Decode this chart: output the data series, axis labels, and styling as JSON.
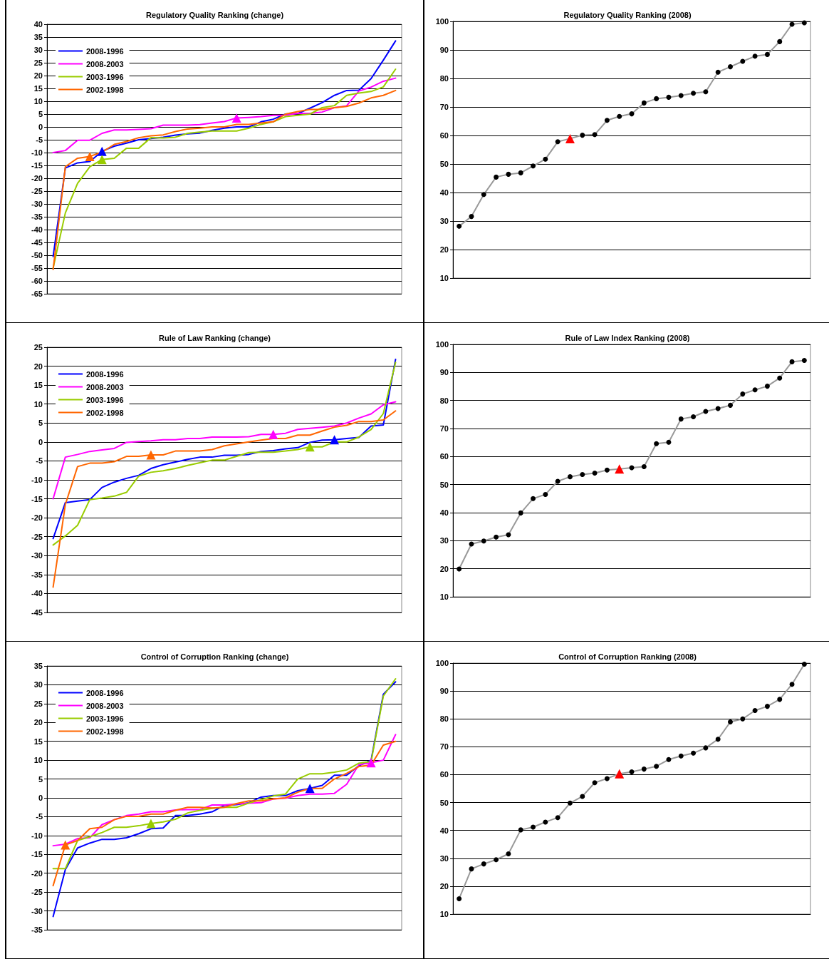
{
  "chart_data": [
    {
      "type": "line",
      "title": "Regulatory Quality Ranking (change)",
      "categories": [
        null,
        null,
        null,
        null,
        null,
        null,
        null,
        null,
        null,
        null,
        null,
        null,
        null,
        null,
        null,
        null,
        null,
        null,
        null,
        null,
        null,
        null,
        null,
        null,
        null,
        null,
        null,
        null,
        null
      ],
      "ylim": [
        -65,
        40
      ],
      "yticks": [
        -65,
        -60,
        -55,
        -50,
        -45,
        -40,
        -35,
        -30,
        -25,
        -20,
        -15,
        -10,
        -5,
        0,
        5,
        10,
        15,
        20,
        25,
        30,
        35,
        40
      ],
      "grid": "y",
      "legend": "top left",
      "tick_labels": "y",
      "marker": "none",
      "line_style": "solid",
      "series": [
        {
          "name": "2008-1996",
          "color": "#0000ff",
          "values": [
            -50.5,
            -16,
            -14,
            -13.5,
            -9.5,
            -7.5,
            -6.3,
            -5,
            -4.5,
            -4,
            -3.2,
            -2.7,
            -2.4,
            -1.3,
            -0.5,
            0,
            0,
            2,
            3,
            5,
            5.2,
            7.3,
            9.5,
            12.3,
            14.2,
            14.3,
            18.8,
            26,
            33.5
          ]
        },
        {
          "name": "2008-2003",
          "color": "#ff00ff",
          "values": [
            -10,
            -9.2,
            -5.2,
            -5.2,
            -2.5,
            -1.2,
            -1.2,
            -1,
            -0.7,
            0.7,
            0.7,
            0.7,
            0.9,
            1.5,
            2.1,
            3.5,
            3.7,
            4,
            4.5,
            4.6,
            5.3,
            5.3,
            5.8,
            7.5,
            8.2,
            14,
            15.5,
            17.8,
            19
          ]
        },
        {
          "name": "2003-1996",
          "color": "#99cc00",
          "values": [
            -55,
            -33.5,
            -22,
            -15.5,
            -12.7,
            -12.2,
            -8.3,
            -8.3,
            -4.2,
            -4.3,
            -4,
            -2.5,
            -2,
            -1.6,
            -1.6,
            -1.6,
            -0.5,
            1,
            2,
            4,
            4.5,
            5,
            7.5,
            8.3,
            12.3,
            13.2,
            13.8,
            15.6,
            22.5
          ]
        },
        {
          "name": "2002-1998",
          "color": "#ff6600",
          "values": [
            -55.5,
            -15.5,
            -12.2,
            -11.5,
            -9.8,
            -6.8,
            -5.7,
            -4.2,
            -3.5,
            -3.1,
            -1.8,
            -0.8,
            -0.5,
            0,
            0,
            1,
            1,
            1.5,
            2,
            5,
            6,
            6.8,
            6.8,
            7.5,
            8,
            9.3,
            11.3,
            12.3,
            14.2
          ]
        },
        {
          "type": "scatter",
          "marker": "triangle",
          "color": "#0000ff",
          "values": [
            null,
            null,
            null,
            null,
            -9.5,
            null,
            null,
            null,
            null,
            null,
            null,
            null,
            null,
            null,
            null,
            null,
            null,
            null,
            null,
            null,
            null,
            null,
            null,
            null,
            null,
            null,
            null,
            null,
            null
          ]
        },
        {
          "type": "scatter",
          "marker": "triangle",
          "color": "#ff00ff",
          "values": [
            null,
            null,
            null,
            null,
            null,
            null,
            null,
            null,
            null,
            null,
            null,
            null,
            null,
            null,
            null,
            3.5,
            null,
            null,
            null,
            null,
            null,
            null,
            null,
            null,
            null,
            null,
            null,
            null,
            null
          ]
        },
        {
          "type": "scatter",
          "marker": "triangle",
          "color": "#99cc00",
          "values": [
            null,
            null,
            null,
            null,
            -12.7,
            null,
            null,
            null,
            null,
            null,
            null,
            null,
            null,
            null,
            null,
            null,
            null,
            null,
            null,
            null,
            null,
            null,
            null,
            null,
            null,
            null,
            null,
            null,
            null
          ]
        },
        {
          "type": "scatter",
          "marker": "triangle",
          "color": "#ff6600",
          "values": [
            null,
            null,
            null,
            -11.5,
            null,
            null,
            null,
            null,
            null,
            null,
            null,
            null,
            null,
            null,
            null,
            null,
            null,
            null,
            null,
            null,
            null,
            null,
            null,
            null,
            null,
            null,
            null,
            null,
            null
          ]
        }
      ]
    },
    {
      "type": "line",
      "title": "Regulatory Quality Ranking (2008)",
      "categories": [
        null,
        null,
        null,
        null,
        null,
        null,
        null,
        null,
        null,
        null,
        null,
        null,
        null,
        null,
        null,
        null,
        null,
        null,
        null,
        null,
        null,
        null,
        null,
        null,
        null,
        null,
        null,
        null,
        null
      ],
      "ylim": [
        10,
        100
      ],
      "yticks": [
        10,
        20,
        30,
        40,
        50,
        60,
        70,
        80,
        90,
        100
      ],
      "grid": "y",
      "legend": false,
      "tick_labels": "y",
      "marker": "none",
      "line_style": "solid",
      "series": [
        {
          "color": "#999999",
          "values": [
            28.2,
            31.6,
            39.3,
            45.4,
            46.4,
            46.9,
            49.3,
            51.7,
            57.8,
            58.9,
            60.1,
            60.3,
            65.3,
            66.7,
            67.6,
            71.4,
            72.9,
            73.4,
            74,
            74.8,
            75.3,
            82.2,
            84.1,
            86,
            87.8,
            88.4,
            92.9,
            99,
            99.5
          ]
        },
        {
          "type": "scatter",
          "marker": "circle",
          "color": "#000000",
          "values": [
            28.2,
            31.6,
            39.3,
            45.4,
            46.4,
            46.9,
            49.3,
            51.7,
            57.8,
            null,
            60.1,
            60.3,
            65.3,
            66.7,
            67.6,
            71.4,
            72.9,
            73.4,
            74,
            74.8,
            75.3,
            82.2,
            84.1,
            86,
            87.8,
            88.4,
            92.9,
            99,
            99.5
          ]
        },
        {
          "type": "scatter",
          "marker": "triangle",
          "color": "#ff0000",
          "values": [
            null,
            null,
            null,
            null,
            null,
            null,
            null,
            null,
            null,
            58.9,
            null,
            null,
            null,
            null,
            null,
            null,
            null,
            null,
            null,
            null,
            null,
            null,
            null,
            null,
            null,
            null,
            null,
            null,
            null
          ]
        }
      ]
    },
    {
      "type": "line",
      "title": "Rule of Law Ranking (change)",
      "categories": [
        null,
        null,
        null,
        null,
        null,
        null,
        null,
        null,
        null,
        null,
        null,
        null,
        null,
        null,
        null,
        null,
        null,
        null,
        null,
        null,
        null,
        null,
        null,
        null,
        null,
        null,
        null,
        null,
        null
      ],
      "ylim": [
        -45,
        25
      ],
      "yticks": [
        -45,
        -40,
        -35,
        -30,
        -25,
        -20,
        -15,
        -10,
        -5,
        0,
        5,
        10,
        15,
        20,
        25
      ],
      "grid": "y",
      "legend": "top left",
      "tick_labels": "y",
      "marker": "none",
      "line_style": "solid",
      "series": [
        {
          "name": "2008-1996",
          "color": "#0000ff",
          "values": [
            -25.5,
            -16,
            -15.6,
            -15.2,
            -12,
            -10.6,
            -9.6,
            -8.8,
            -7,
            -6,
            -5.3,
            -4.6,
            -4,
            -4,
            -3.5,
            -3.5,
            -3.3,
            -2.5,
            -2.3,
            -1.8,
            -1.5,
            -0.1,
            0.5,
            0.6,
            0.9,
            1.2,
            4.2,
            4.5,
            21.8
          ]
        },
        {
          "name": "2008-2003",
          "color": "#ff00ff",
          "values": [
            -15,
            -4,
            -3.3,
            -2.5,
            -2.1,
            -1.7,
            -0.1,
            0.1,
            0.3,
            0.6,
            0.6,
            0.9,
            0.9,
            1.3,
            1.3,
            1.3,
            1.4,
            2,
            2,
            2.3,
            3.3,
            3.6,
            3.9,
            4.2,
            5,
            6.3,
            7.4,
            9.8,
            10.6
          ]
        },
        {
          "name": "2003-1996",
          "color": "#99cc00",
          "values": [
            -27.2,
            -24.8,
            -22,
            -15.2,
            -14.8,
            -14.3,
            -13.3,
            -9,
            -8,
            -7.6,
            -7,
            -6.2,
            -5.5,
            -4.8,
            -4.8,
            -3.8,
            -2.8,
            -2.7,
            -2.7,
            -2.4,
            -2,
            -1.3,
            -1.3,
            0,
            0,
            1.3,
            3.3,
            7.5,
            21
          ]
        },
        {
          "name": "2002-1998",
          "color": "#ff6600",
          "values": [
            -38.3,
            -16.5,
            -6.5,
            -5.6,
            -5.6,
            -5.2,
            -3.8,
            -3.8,
            -3.4,
            -3.4,
            -2.4,
            -2.4,
            -2.4,
            -2,
            -1,
            -0.5,
            0,
            0.5,
            0.9,
            0.9,
            1.8,
            1.8,
            2.9,
            3.9,
            4.4,
            5.4,
            5.4,
            5.8,
            8.2
          ]
        },
        {
          "type": "scatter",
          "marker": "triangle",
          "color": "#0000ff",
          "values": [
            null,
            null,
            null,
            null,
            null,
            null,
            null,
            null,
            null,
            null,
            null,
            null,
            null,
            null,
            null,
            null,
            null,
            null,
            null,
            null,
            null,
            null,
            null,
            0.6,
            null,
            null,
            null,
            null,
            null
          ]
        },
        {
          "type": "scatter",
          "marker": "triangle",
          "color": "#ff00ff",
          "values": [
            null,
            null,
            null,
            null,
            null,
            null,
            null,
            null,
            null,
            null,
            null,
            null,
            null,
            null,
            null,
            null,
            null,
            null,
            2,
            null,
            null,
            null,
            null,
            null,
            null,
            null,
            null,
            null,
            null
          ]
        },
        {
          "type": "scatter",
          "marker": "triangle",
          "color": "#99cc00",
          "values": [
            null,
            null,
            null,
            null,
            null,
            null,
            null,
            null,
            null,
            null,
            null,
            null,
            null,
            null,
            null,
            null,
            null,
            null,
            null,
            null,
            null,
            -1.3,
            null,
            null,
            null,
            null,
            null,
            null,
            null
          ]
        },
        {
          "type": "scatter",
          "marker": "triangle",
          "color": "#ff6600",
          "values": [
            null,
            null,
            null,
            null,
            null,
            null,
            null,
            null,
            -3.4,
            null,
            null,
            null,
            null,
            null,
            null,
            null,
            null,
            null,
            null,
            null,
            null,
            null,
            null,
            null,
            null,
            null,
            null,
            null,
            null
          ]
        }
      ]
    },
    {
      "type": "line",
      "title": "Rule of Law Index Ranking (2008)",
      "categories": [
        null,
        null,
        null,
        null,
        null,
        null,
        null,
        null,
        null,
        null,
        null,
        null,
        null,
        null,
        null,
        null,
        null,
        null,
        null,
        null,
        null,
        null,
        null,
        null,
        null,
        null,
        null,
        null,
        null
      ],
      "ylim": [
        10,
        100
      ],
      "yticks": [
        10,
        20,
        30,
        40,
        50,
        60,
        70,
        80,
        90,
        100
      ],
      "grid": "y",
      "legend": false,
      "tick_labels": "y",
      "marker": "none",
      "line_style": "solid",
      "series": [
        {
          "color": "#999999",
          "values": [
            19.9,
            28.8,
            29.9,
            31.3,
            32.1,
            39.9,
            45,
            46.5,
            51.2,
            52.8,
            53.6,
            54.1,
            55.2,
            55.6,
            56,
            56.4,
            64.6,
            65.1,
            73.4,
            74.2,
            76.1,
            77.1,
            78.3,
            82.3,
            83.8,
            85.1,
            88,
            93.8,
            94.3
          ]
        },
        {
          "type": "scatter",
          "marker": "circle",
          "color": "#000000",
          "values": [
            19.9,
            28.8,
            29.9,
            31.3,
            32.1,
            39.9,
            45,
            46.5,
            51.2,
            52.8,
            53.6,
            54.1,
            55.2,
            null,
            56,
            56.4,
            64.6,
            65.1,
            73.4,
            74.2,
            76.1,
            77.1,
            78.3,
            82.3,
            83.8,
            85.1,
            88,
            93.8,
            94.3
          ]
        },
        {
          "type": "scatter",
          "marker": "triangle",
          "color": "#ff0000",
          "values": [
            null,
            null,
            null,
            null,
            null,
            null,
            null,
            null,
            null,
            null,
            null,
            null,
            null,
            55.6,
            null,
            null,
            null,
            null,
            null,
            null,
            null,
            null,
            null,
            null,
            null,
            null,
            null,
            null,
            null
          ]
        }
      ]
    },
    {
      "type": "line",
      "title": "Control of Corruption Ranking (change)",
      "categories": [
        null,
        null,
        null,
        null,
        null,
        null,
        null,
        null,
        null,
        null,
        null,
        null,
        null,
        null,
        null,
        null,
        null,
        null,
        null,
        null,
        null,
        null,
        null,
        null,
        null,
        null,
        null,
        null,
        null
      ],
      "ylim": [
        -35,
        35
      ],
      "yticks": [
        -35,
        -30,
        -25,
        -20,
        -15,
        -10,
        -5,
        0,
        5,
        10,
        15,
        20,
        25,
        30,
        35
      ],
      "grid": "y",
      "legend": "top left",
      "tick_labels": "y",
      "marker": "none",
      "line_style": "solid",
      "series": [
        {
          "name": "2008-1996",
          "color": "#0000ff",
          "values": [
            -31.5,
            -19,
            -13.3,
            -12,
            -11,
            -11,
            -10.6,
            -9.5,
            -8.2,
            -8,
            -4.7,
            -4.7,
            -4.3,
            -3.7,
            -2,
            -1.8,
            -1.3,
            0.2,
            0.6,
            0.6,
            1.9,
            2.5,
            3.3,
            6,
            6,
            8.5,
            10,
            27.5,
            30.8
          ]
        },
        {
          "name": "2008-2003",
          "color": "#ff00ff",
          "values": [
            -12.7,
            -12.3,
            -10.8,
            -10.6,
            -7.1,
            -5.8,
            -4.7,
            -4.3,
            -3.7,
            -3.7,
            -3.2,
            -3.1,
            -3.1,
            -1.9,
            -1.9,
            -1.6,
            -1.4,
            -1.3,
            -0.3,
            -0.1,
            0.6,
            1,
            1,
            1.2,
            3.6,
            8.8,
            9.3,
            10,
            16.8
          ]
        },
        {
          "name": "2003-1996",
          "color": "#99cc00",
          "values": [
            -18.8,
            -18.8,
            -11.3,
            -10.3,
            -9.2,
            -7.8,
            -7.8,
            -7.4,
            -6.8,
            -6.4,
            -5.7,
            -4,
            -3.3,
            -2.8,
            -2.5,
            -2.5,
            -1.4,
            -0.5,
            0.5,
            1,
            5,
            6.4,
            6.4,
            6.8,
            7.4,
            9.2,
            9.6,
            27,
            31.6
          ]
        },
        {
          "name": "2002-1998",
          "color": "#ff6600",
          "values": [
            -23.3,
            -12.5,
            -11.3,
            -8.2,
            -7.8,
            -5.8,
            -4.9,
            -4.9,
            -4.3,
            -4.3,
            -3.3,
            -2.5,
            -2.5,
            -2.7,
            -2.5,
            -1.5,
            -0.8,
            -0.8,
            -0.3,
            0,
            1.5,
            2.5,
            2.5,
            5,
            6.5,
            8.3,
            8.7,
            14,
            15
          ]
        },
        {
          "type": "scatter",
          "marker": "triangle",
          "color": "#0000ff",
          "values": [
            null,
            null,
            null,
            null,
            null,
            null,
            null,
            null,
            null,
            null,
            null,
            null,
            null,
            null,
            null,
            null,
            null,
            null,
            null,
            null,
            null,
            2.5,
            null,
            null,
            null,
            null,
            null,
            null,
            null
          ]
        },
        {
          "type": "scatter",
          "marker": "triangle",
          "color": "#ff00ff",
          "values": [
            null,
            null,
            null,
            null,
            null,
            null,
            null,
            null,
            null,
            null,
            null,
            null,
            null,
            null,
            null,
            null,
            null,
            null,
            null,
            null,
            null,
            null,
            null,
            null,
            null,
            null,
            9.3,
            null,
            null
          ]
        },
        {
          "type": "scatter",
          "marker": "triangle",
          "color": "#99cc00",
          "values": [
            null,
            null,
            null,
            null,
            null,
            null,
            null,
            null,
            -6.8,
            null,
            null,
            null,
            null,
            null,
            null,
            null,
            null,
            null,
            null,
            null,
            null,
            null,
            null,
            null,
            null,
            null,
            null,
            null,
            null
          ]
        },
        {
          "type": "scatter",
          "marker": "triangle",
          "color": "#ff6600",
          "values": [
            null,
            -12.5,
            null,
            null,
            null,
            null,
            null,
            null,
            null,
            null,
            null,
            null,
            null,
            null,
            null,
            null,
            null,
            null,
            null,
            null,
            null,
            null,
            null,
            null,
            null,
            null,
            null,
            null,
            null
          ]
        }
      ]
    },
    {
      "type": "line",
      "title": "Control of Corruption Ranking (2008)",
      "categories": [
        null,
        null,
        null,
        null,
        null,
        null,
        null,
        null,
        null,
        null,
        null,
        null,
        null,
        null,
        null,
        null,
        null,
        null,
        null,
        null,
        null,
        null,
        null,
        null,
        null,
        null,
        null,
        null,
        null
      ],
      "ylim": [
        10,
        100
      ],
      "yticks": [
        10,
        20,
        30,
        40,
        50,
        60,
        70,
        80,
        90,
        100
      ],
      "grid": "y",
      "legend": false,
      "tick_labels": "y",
      "marker": "none",
      "line_style": "solid",
      "series": [
        {
          "color": "#999999",
          "values": [
            15.5,
            26.2,
            28,
            29.5,
            31.6,
            40.2,
            41.2,
            43,
            44.6,
            49.8,
            52.2,
            57.1,
            58.6,
            60.3,
            61,
            62,
            63,
            65.4,
            66.7,
            67.7,
            69.6,
            72.7,
            78.9,
            80,
            83,
            84.5,
            87,
            92.4,
            99.6
          ]
        },
        {
          "type": "scatter",
          "marker": "circle",
          "color": "#000000",
          "values": [
            15.5,
            26.2,
            28,
            29.5,
            31.6,
            40.2,
            41.2,
            43,
            44.6,
            49.8,
            52.2,
            57.1,
            58.6,
            null,
            61,
            62,
            63,
            65.4,
            66.7,
            67.7,
            69.6,
            72.7,
            78.9,
            80,
            83,
            84.5,
            87,
            92.4,
            99.6
          ]
        },
        {
          "type": "scatter",
          "marker": "triangle",
          "color": "#ff0000",
          "values": [
            null,
            null,
            null,
            null,
            null,
            null,
            null,
            null,
            null,
            null,
            null,
            null,
            null,
            60.3,
            null,
            null,
            null,
            null,
            null,
            null,
            null,
            null,
            null,
            null,
            null,
            null,
            null,
            null,
            null
          ]
        }
      ]
    }
  ]
}
